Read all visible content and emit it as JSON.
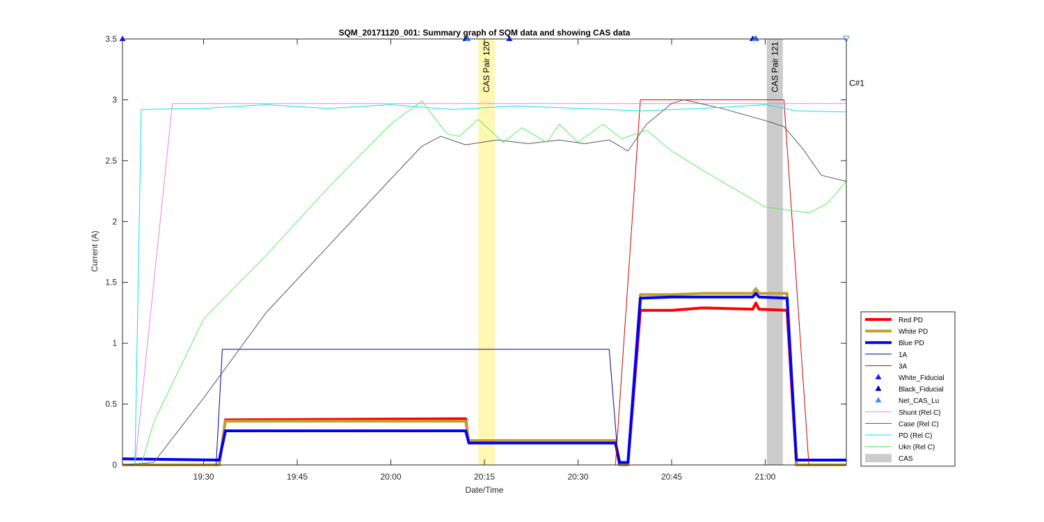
{
  "chart_data": {
    "type": "line",
    "title": "SQM_20171120_001: Summary graph of SQM data and showing CAS data",
    "xlabel": "Date/Time",
    "ylabel": "Current (A)",
    "x_unit": "clock time",
    "xlim": [
      "19:17",
      "21:13"
    ],
    "ylim": [
      0,
      3.5
    ],
    "x_ticks": [
      "19:30",
      "19:45",
      "20:00",
      "20:15",
      "20:30",
      "20:45",
      "21:00"
    ],
    "y_ticks": [
      "0",
      "0.5",
      "1",
      "1.5",
      "2",
      "2.5",
      "3",
      "3.5"
    ],
    "grid": false,
    "legend_position": "lower right, outside plot",
    "shaded_regions": [
      {
        "label": "CAS Pair 120",
        "x_start": "20:14",
        "x_end": "20:16:40",
        "color": "#fff7b2"
      },
      {
        "label": "CAS Pair 121",
        "x_start": "21:00:15",
        "x_end": "21:02:50",
        "color": "#cccccc"
      }
    ],
    "annotations": [
      {
        "text": "C#1",
        "x": "21:13",
        "y": 3.0
      }
    ],
    "series": [
      {
        "name": "Red PD",
        "color": "#ff0000",
        "width": 4,
        "points": [
          [
            "19:17",
            0.0
          ],
          [
            "19:32:30",
            0.0
          ],
          [
            "19:33:30",
            0.37
          ],
          [
            "20:12",
            0.38
          ],
          [
            "20:12:30",
            0.19
          ],
          [
            "20:36",
            0.19
          ],
          [
            "20:36:40",
            0.0
          ],
          [
            "20:38",
            0.0
          ],
          [
            "20:40",
            1.27
          ],
          [
            "20:45",
            1.27
          ],
          [
            "20:50",
            1.29
          ],
          [
            "20:58",
            1.28
          ],
          [
            "20:58:30",
            1.33
          ],
          [
            "20:59",
            1.28
          ],
          [
            "21:03:30",
            1.27
          ],
          [
            "21:05",
            0.0
          ],
          [
            "21:13",
            0.0
          ]
        ]
      },
      {
        "name": "White PD",
        "color": "#c0a030",
        "width": 4,
        "points": [
          [
            "19:17",
            0.0
          ],
          [
            "19:32:30",
            0.0
          ],
          [
            "19:33:30",
            0.36
          ],
          [
            "20:12",
            0.36
          ],
          [
            "20:12:30",
            0.2
          ],
          [
            "20:36",
            0.2
          ],
          [
            "20:36:40",
            0.0
          ],
          [
            "20:38",
            0.0
          ],
          [
            "20:40",
            1.4
          ],
          [
            "20:45",
            1.4
          ],
          [
            "20:50",
            1.41
          ],
          [
            "20:58",
            1.41
          ],
          [
            "20:58:30",
            1.45
          ],
          [
            "20:59",
            1.41
          ],
          [
            "21:03:30",
            1.41
          ],
          [
            "21:05",
            0.0
          ],
          [
            "21:13",
            0.0
          ]
        ]
      },
      {
        "name": "Blue PD",
        "color": "#0000ff",
        "width": 4,
        "points": [
          [
            "19:17",
            0.05
          ],
          [
            "19:32:30",
            0.04
          ],
          [
            "19:33:30",
            0.28
          ],
          [
            "20:12",
            0.28
          ],
          [
            "20:12:30",
            0.18
          ],
          [
            "20:36",
            0.18
          ],
          [
            "20:36:40",
            0.02
          ],
          [
            "20:38",
            0.02
          ],
          [
            "20:40",
            1.37
          ],
          [
            "20:45",
            1.38
          ],
          [
            "20:50",
            1.38
          ],
          [
            "20:58",
            1.38
          ],
          [
            "20:58:30",
            1.41
          ],
          [
            "20:59",
            1.38
          ],
          [
            "21:03:30",
            1.37
          ],
          [
            "21:05",
            0.04
          ],
          [
            "21:13",
            0.04
          ]
        ]
      },
      {
        "name": "1A",
        "color": "#00008b",
        "width": 1,
        "points": [
          [
            "19:17",
            0.0
          ],
          [
            "19:32",
            0.0
          ],
          [
            "19:33",
            0.95
          ],
          [
            "20:35",
            0.95
          ],
          [
            "20:36:30",
            0.0
          ],
          [
            "21:13",
            0.0
          ]
        ]
      },
      {
        "name": "3A",
        "color": "#cc0000",
        "width": 1,
        "points": [
          [
            "19:17",
            0.0
          ],
          [
            "20:36",
            0.0
          ],
          [
            "20:40",
            3.0
          ],
          [
            "21:03",
            3.0
          ],
          [
            "21:07",
            0.0
          ],
          [
            "21:13",
            0.0
          ]
        ]
      },
      {
        "name": "Shunt (Rel C)",
        "color": "#e680e6",
        "width": 1,
        "points": [
          [
            "19:17",
            0.0
          ],
          [
            "19:19",
            0.0
          ],
          [
            "19:25",
            2.97
          ],
          [
            "21:13",
            2.97
          ]
        ]
      },
      {
        "name": "Case (Rel C)",
        "color": "#555555",
        "width": 1,
        "points": [
          [
            "19:17",
            0.0
          ],
          [
            "19:22",
            0.02
          ],
          [
            "19:30",
            0.55
          ],
          [
            "19:40",
            1.25
          ],
          [
            "19:50",
            1.8
          ],
          [
            "20:00",
            2.35
          ],
          [
            "20:05",
            2.62
          ],
          [
            "20:08",
            2.7
          ],
          [
            "20:12",
            2.63
          ],
          [
            "20:17",
            2.67
          ],
          [
            "20:22",
            2.64
          ],
          [
            "20:27",
            2.67
          ],
          [
            "20:31",
            2.64
          ],
          [
            "20:35",
            2.67
          ],
          [
            "20:38",
            2.58
          ],
          [
            "20:41",
            2.8
          ],
          [
            "20:45",
            2.97
          ],
          [
            "20:47",
            3.0
          ],
          [
            "20:53",
            2.93
          ],
          [
            "21:00",
            2.83
          ],
          [
            "21:03",
            2.78
          ],
          [
            "21:06",
            2.6
          ],
          [
            "21:09",
            2.38
          ],
          [
            "21:13",
            2.33
          ]
        ]
      },
      {
        "name": "PD (Rel C)",
        "color": "#00e5ee",
        "width": 1,
        "points": [
          [
            "19:17",
            0.0
          ],
          [
            "19:19",
            0.0
          ],
          [
            "19:20",
            2.92
          ],
          [
            "19:30",
            2.93
          ],
          [
            "19:40",
            2.96
          ],
          [
            "19:50",
            2.93
          ],
          [
            "20:00",
            2.96
          ],
          [
            "20:10",
            2.92
          ],
          [
            "20:20",
            2.95
          ],
          [
            "20:30",
            2.93
          ],
          [
            "20:40",
            2.91
          ],
          [
            "20:50",
            2.93
          ],
          [
            "21:00",
            2.96
          ],
          [
            "21:05",
            2.91
          ],
          [
            "21:13",
            2.9
          ]
        ]
      },
      {
        "name": "Ukn (Rel C)",
        "color": "#55ee55",
        "width": 1,
        "points": [
          [
            "19:17",
            0.0
          ],
          [
            "19:20",
            0.0
          ],
          [
            "19:22",
            0.35
          ],
          [
            "19:30",
            1.2
          ],
          [
            "19:40",
            1.72
          ],
          [
            "19:50",
            2.28
          ],
          [
            "20:00",
            2.8
          ],
          [
            "20:05",
            2.99
          ],
          [
            "20:09",
            2.72
          ],
          [
            "20:11",
            2.7
          ],
          [
            "20:14",
            2.84
          ],
          [
            "20:18",
            2.65
          ],
          [
            "20:21",
            2.77
          ],
          [
            "20:25",
            2.65
          ],
          [
            "20:27",
            2.8
          ],
          [
            "20:30",
            2.65
          ],
          [
            "20:34",
            2.8
          ],
          [
            "20:37",
            2.68
          ],
          [
            "20:41",
            2.75
          ],
          [
            "20:45",
            2.58
          ],
          [
            "20:50",
            2.42
          ],
          [
            "21:00",
            2.12
          ],
          [
            "21:07",
            2.07
          ],
          [
            "21:10",
            2.15
          ],
          [
            "21:13",
            2.33
          ]
        ]
      }
    ],
    "fiducials": [
      {
        "name": "White_Fiducial",
        "color": "#1a1aff",
        "marker": "filled-triangle",
        "points": [
          [
            "19:17",
            3.5
          ],
          [
            "20:19",
            3.5
          ],
          [
            "20:58:30",
            3.5
          ]
        ]
      },
      {
        "name": "Black_Fiducial",
        "color": "#0000b4",
        "marker": "filled-triangle",
        "points": [
          [
            "20:12",
            3.5
          ],
          [
            "20:58",
            3.5
          ]
        ]
      },
      {
        "name": "Net_CAS_Lu",
        "color": "#3c8cff",
        "marker": "filled-triangle",
        "points": [
          [
            "20:12:20",
            3.5
          ],
          [
            "20:58:20",
            3.5
          ]
        ]
      },
      {
        "name": "",
        "color": "#3c8cff",
        "marker": "open-down-triangle",
        "points": [
          [
            "21:13",
            3.5
          ]
        ]
      }
    ],
    "legend": [
      {
        "label": "Red PD",
        "kind": "line",
        "color": "#ff0000",
        "width": 4
      },
      {
        "label": "White PD",
        "kind": "line",
        "color": "#c0a030",
        "width": 4
      },
      {
        "label": "Blue PD",
        "kind": "line",
        "color": "#0000ff",
        "width": 4
      },
      {
        "label": "1A",
        "kind": "line",
        "color": "#00008b",
        "width": 1
      },
      {
        "label": "3A",
        "kind": "line",
        "color": "#cc0000",
        "width": 1
      },
      {
        "label": "White_Fiducial",
        "kind": "marker",
        "color": "#1a1aff"
      },
      {
        "label": "Black_Fiducial",
        "kind": "marker",
        "color": "#0000b4"
      },
      {
        "label": "Net_CAS_Lu",
        "kind": "marker",
        "color": "#3c8cff"
      },
      {
        "label": "Shunt (Rel C)",
        "kind": "line",
        "color": "#e680e6",
        "width": 1
      },
      {
        "label": "Case (Rel C)",
        "kind": "line",
        "color": "#555555",
        "width": 1
      },
      {
        "label": "PD (Rel C)",
        "kind": "line",
        "color": "#00e5ee",
        "width": 1
      },
      {
        "label": "Ukn (Rel C)",
        "kind": "line",
        "color": "#55ee55",
        "width": 1
      },
      {
        "label": "CAS",
        "kind": "patch",
        "color": "#cccccc"
      }
    ]
  }
}
